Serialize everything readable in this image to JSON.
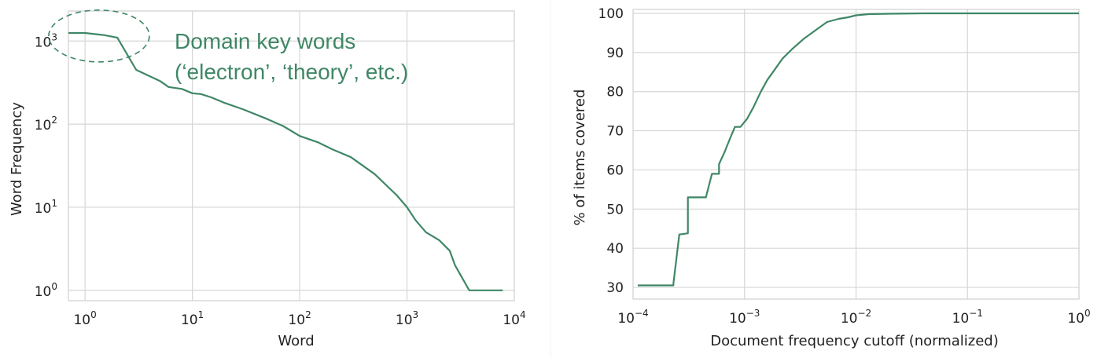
{
  "chart_data": [
    {
      "type": "line",
      "xlabel": "Word",
      "ylabel": "Word Frequency",
      "x_scale": "log",
      "y_scale": "log",
      "xlim": [
        0.7,
        10000
      ],
      "ylim": [
        0.75,
        2300
      ],
      "x_ticks": [
        {
          "value": 1,
          "base": "10",
          "exp": "0"
        },
        {
          "value": 10,
          "base": "10",
          "exp": "1"
        },
        {
          "value": 100,
          "base": "10",
          "exp": "2"
        },
        {
          "value": 1000,
          "base": "10",
          "exp": "3"
        },
        {
          "value": 10000,
          "base": "10",
          "exp": "4"
        }
      ],
      "y_ticks": [
        {
          "value": 1,
          "base": "10",
          "exp": "0"
        },
        {
          "value": 10,
          "base": "10",
          "exp": "1"
        },
        {
          "value": 100,
          "base": "10",
          "exp": "2"
        },
        {
          "value": 1000,
          "base": "10",
          "exp": "3"
        }
      ],
      "grid": true,
      "line_color": "#3f8766",
      "series": [
        {
          "x": [
            0.7,
            1.0,
            1.5,
            2.0,
            3.0,
            5.0,
            6.0,
            8.0,
            10,
            12,
            15,
            20,
            30,
            50,
            70,
            100,
            150,
            200,
            300,
            500,
            800,
            1000,
            1200,
            1500,
            2000,
            2500,
            2800,
            3800,
            7800
          ],
          "y": [
            1250,
            1250,
            1180,
            1100,
            450,
            330,
            280,
            265,
            235,
            230,
            210,
            180,
            150,
            115,
            95,
            72,
            60,
            50,
            40,
            25,
            14,
            10,
            7,
            5,
            4,
            3,
            2,
            1,
            1
          ]
        }
      ],
      "annotation": {
        "lines": [
          "Domain key words",
          "(‘electron’, ‘theory’, etc.)"
        ],
        "color": "#3f8766",
        "ellipse_center": [
          1.35,
          1150
        ]
      }
    },
    {
      "type": "line",
      "xlabel": "Document frequency cutoff (normalized)",
      "ylabel": "% of items covered",
      "x_scale": "log",
      "y_scale": "linear",
      "xlim": [
        0.0001,
        1
      ],
      "ylim": [
        27,
        101
      ],
      "x_ticks": [
        {
          "value": 0.0001,
          "base": "10",
          "exp": "−4"
        },
        {
          "value": 0.001,
          "base": "10",
          "exp": "−3"
        },
        {
          "value": 0.01,
          "base": "10",
          "exp": "−2"
        },
        {
          "value": 0.1,
          "base": "10",
          "exp": "−1"
        },
        {
          "value": 1,
          "base": "10",
          "exp": "0"
        }
      ],
      "y_ticks": [
        30,
        40,
        50,
        60,
        70,
        80,
        90,
        100
      ],
      "grid": true,
      "line_color": "#3f8766",
      "series": [
        {
          "x": [
            0.00011,
            0.00023,
            0.00023,
            0.00026,
            0.00026,
            0.00031,
            0.00031,
            0.00035,
            0.00035,
            0.00045,
            0.00045,
            0.00051,
            0.00051,
            0.00059,
            0.00059,
            0.00066,
            0.00074,
            0.00082,
            0.00092,
            0.00105,
            0.0012,
            0.0014,
            0.0016,
            0.0018,
            0.0022,
            0.0027,
            0.0034,
            0.0045,
            0.0055,
            0.007,
            0.0085,
            0.01,
            0.013,
            0.02,
            0.04,
            0.1,
            1
          ],
          "y": [
            30.5,
            30.5,
            31.0,
            43.5,
            43.5,
            43.8,
            53.0,
            53.0,
            53.0,
            53.0,
            53.0,
            59.0,
            59.0,
            59.0,
            61.5,
            64.5,
            68.0,
            71.0,
            71.0,
            73.0,
            76.0,
            80.0,
            83.0,
            85.0,
            88.5,
            91.0,
            93.5,
            96.0,
            97.8,
            98.6,
            99.0,
            99.5,
            99.8,
            99.9,
            100,
            100,
            100
          ]
        }
      ]
    }
  ]
}
